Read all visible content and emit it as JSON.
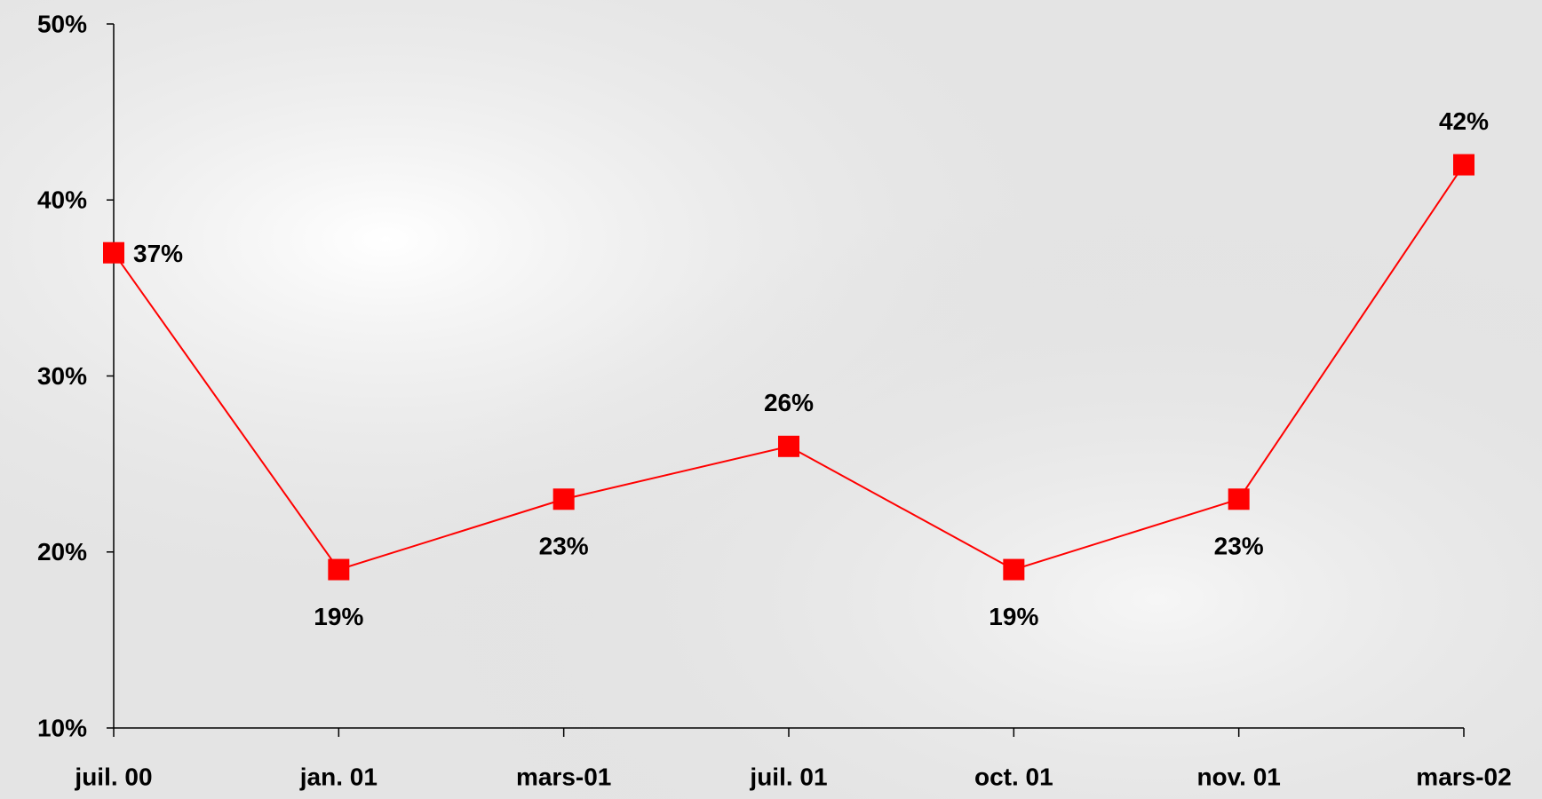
{
  "chart_data": {
    "type": "line",
    "categories": [
      "juil. 00",
      "jan. 01",
      "mars-01",
      "juil. 01",
      "oct. 01",
      "nov. 01",
      "mars-02"
    ],
    "series": [
      {
        "name": null,
        "color": "#ff0000",
        "values": [
          37,
          19,
          23,
          26,
          19,
          23,
          42
        ],
        "value_labels": [
          "37%",
          "19%",
          "23%",
          "26%",
          "19%",
          "23%",
          "42%"
        ]
      }
    ],
    "ylim": [
      10,
      50
    ],
    "yticks": [
      {
        "value": 10,
        "label": "10%"
      },
      {
        "value": 20,
        "label": "20%"
      },
      {
        "value": 30,
        "label": "30%"
      },
      {
        "value": 40,
        "label": "40%"
      },
      {
        "value": 50,
        "label": "50%"
      }
    ],
    "grid": false
  }
}
